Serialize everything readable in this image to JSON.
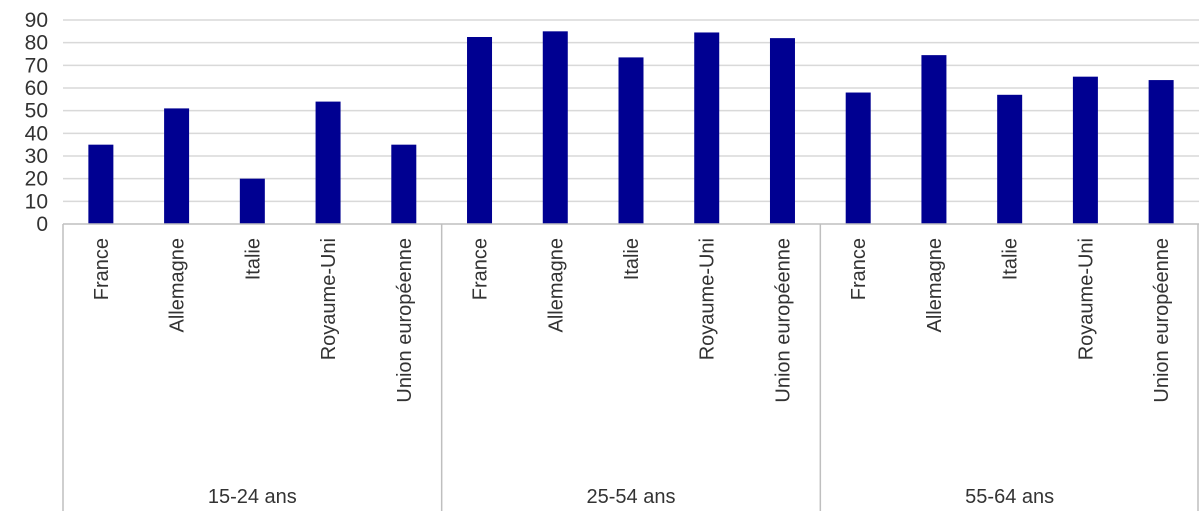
{
  "chart_data": {
    "type": "bar",
    "groups": [
      {
        "label": "15-24 ans",
        "categories": [
          "France",
          "Allemagne",
          "Italie",
          "Royaume-Uni",
          "Union européenne"
        ],
        "values": [
          35,
          51,
          20,
          54,
          35
        ]
      },
      {
        "label": "25-54 ans",
        "categories": [
          "France",
          "Allemagne",
          "Italie",
          "Royaume-Uni",
          "Union européenne"
        ],
        "values": [
          82.5,
          85,
          73.5,
          84.5,
          82
        ]
      },
      {
        "label": "55-64 ans",
        "categories": [
          "France",
          "Allemagne",
          "Italie",
          "Royaume-Uni",
          "Union européenne"
        ],
        "values": [
          58,
          74.5,
          57,
          65,
          63.5
        ]
      }
    ],
    "yticks": [
      "0",
      "10",
      "20",
      "30",
      "40",
      "50",
      "60",
      "70",
      "80",
      "90"
    ],
    "ylim": [
      0,
      90
    ],
    "grid": true,
    "legend": "none",
    "bar_color": "#000091"
  }
}
